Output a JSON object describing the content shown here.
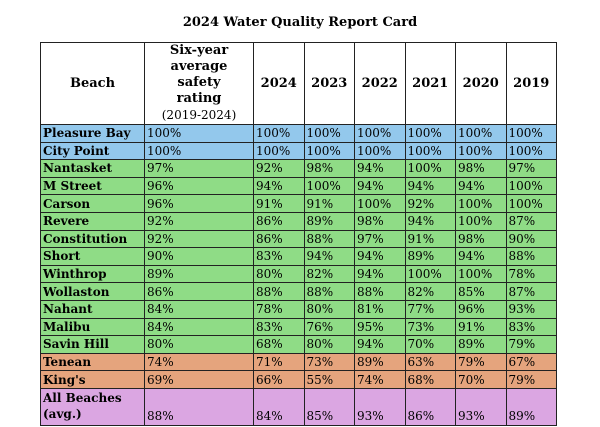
{
  "title": "2024 Water Quality Report Card",
  "colors": {
    "high_rating": "#93c8ec",
    "good_rating": "#8fdc86",
    "low_rating": "#e5a47d",
    "all_beaches": "#dba6e2"
  },
  "table": {
    "headers": {
      "beach": "Beach",
      "avg_line1": "Six-year",
      "avg_line2": "average safety",
      "avg_line3": "rating",
      "avg_line4": "(2019-2024)",
      "y2024": "2024",
      "y2023": "2023",
      "y2022": "2022",
      "y2021": "2021",
      "y2020": "2020",
      "y2019": "2019"
    },
    "rows": [
      {
        "beach": "Pleasure Bay",
        "avg": "100%",
        "y2024": "100%",
        "y2023": "100%",
        "y2022": "100%",
        "y2021": "100%",
        "y2020": "100%",
        "y2019": "100%"
      },
      {
        "beach": "City Point",
        "avg": "100%",
        "y2024": "100%",
        "y2023": "100%",
        "y2022": "100%",
        "y2021": "100%",
        "y2020": "100%",
        "y2019": "100%"
      },
      {
        "beach": "Nantasket",
        "avg": "97%",
        "y2024": "92%",
        "y2023": "98%",
        "y2022": "94%",
        "y2021": "100%",
        "y2020": "98%",
        "y2019": "97%"
      },
      {
        "beach": "M Street",
        "avg": "96%",
        "y2024": "94%",
        "y2023": "100%",
        "y2022": "94%",
        "y2021": "94%",
        "y2020": "94%",
        "y2019": "100%"
      },
      {
        "beach": "Carson",
        "avg": "96%",
        "y2024": "91%",
        "y2023": "91%",
        "y2022": "100%",
        "y2021": "92%",
        "y2020": "100%",
        "y2019": "100%"
      },
      {
        "beach": "Revere",
        "avg": "92%",
        "y2024": "86%",
        "y2023": "89%",
        "y2022": "98%",
        "y2021": "94%",
        "y2020": "100%",
        "y2019": "87%"
      },
      {
        "beach": "Constitution",
        "avg": "92%",
        "y2024": "86%",
        "y2023": "88%",
        "y2022": "97%",
        "y2021": "91%",
        "y2020": "98%",
        "y2019": "90%"
      },
      {
        "beach": "Short",
        "avg": "90%",
        "y2024": "83%",
        "y2023": "94%",
        "y2022": "94%",
        "y2021": "89%",
        "y2020": "94%",
        "y2019": "88%"
      },
      {
        "beach": "Winthrop",
        "avg": "89%",
        "y2024": "80%",
        "y2023": "82%",
        "y2022": "94%",
        "y2021": "100%",
        "y2020": "100%",
        "y2019": "78%"
      },
      {
        "beach": "Wollaston",
        "avg": "86%",
        "y2024": "88%",
        "y2023": "88%",
        "y2022": "88%",
        "y2021": "82%",
        "y2020": "85%",
        "y2019": "87%"
      },
      {
        "beach": "Nahant",
        "avg": "84%",
        "y2024": "78%",
        "y2023": "80%",
        "y2022": "81%",
        "y2021": "77%",
        "y2020": "96%",
        "y2019": "93%"
      },
      {
        "beach": "Malibu",
        "avg": "84%",
        "y2024": "83%",
        "y2023": "76%",
        "y2022": "95%",
        "y2021": "73%",
        "y2020": "91%",
        "y2019": "83%"
      },
      {
        "beach": "Savin Hill",
        "avg": "80%",
        "y2024": "68%",
        "y2023": "80%",
        "y2022": "94%",
        "y2021": "70%",
        "y2020": "89%",
        "y2019": "79%"
      },
      {
        "beach": "Tenean",
        "avg": "74%",
        "y2024": "71%",
        "y2023": "73%",
        "y2022": "89%",
        "y2021": "63%",
        "y2020": "79%",
        "y2019": "67%"
      },
      {
        "beach": "King's",
        "avg": "69%",
        "y2024": "66%",
        "y2023": "55%",
        "y2022": "74%",
        "y2021": "68%",
        "y2020": "70%",
        "y2019": "79%"
      },
      {
        "beach": "All Beaches (avg.)",
        "avg": "88%",
        "y2024": "84%",
        "y2023": "85%",
        "y2022": "93%",
        "y2021": "86%",
        "y2020": "93%",
        "y2019": "89%"
      }
    ]
  }
}
